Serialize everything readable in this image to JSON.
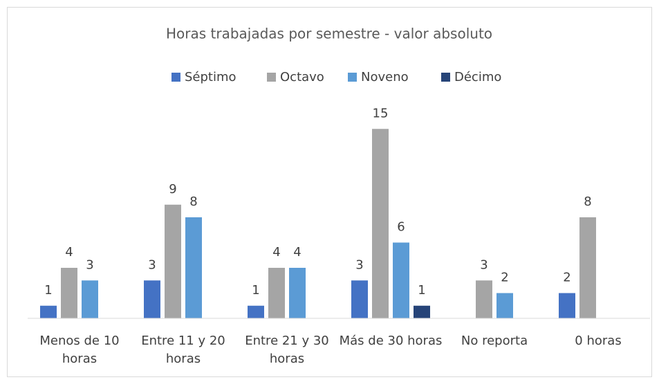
{
  "chart_data": {
    "type": "bar",
    "title": "Horas trabajadas por semestre - valor absoluto",
    "categories": [
      "Menos de 10 horas",
      "Entre 11 y 20 horas",
      "Entre 21 y 30 horas",
      "Más de 30 horas",
      "No reporta",
      "0 horas"
    ],
    "series": [
      {
        "name": "Séptimo",
        "color": "#4472c4",
        "values": [
          1,
          3,
          1,
          3,
          null,
          2
        ]
      },
      {
        "name": "Octavo",
        "color": "#a5a5a5",
        "values": [
          4,
          9,
          4,
          15,
          3,
          8
        ]
      },
      {
        "name": "Noveno",
        "color": "#5b9bd5",
        "values": [
          3,
          8,
          4,
          6,
          2,
          null
        ]
      },
      {
        "name": "Décimo",
        "color": "#264478",
        "values": [
          null,
          null,
          null,
          1,
          null,
          null
        ]
      }
    ],
    "ylim": [
      0,
      16
    ],
    "legend": "top"
  }
}
